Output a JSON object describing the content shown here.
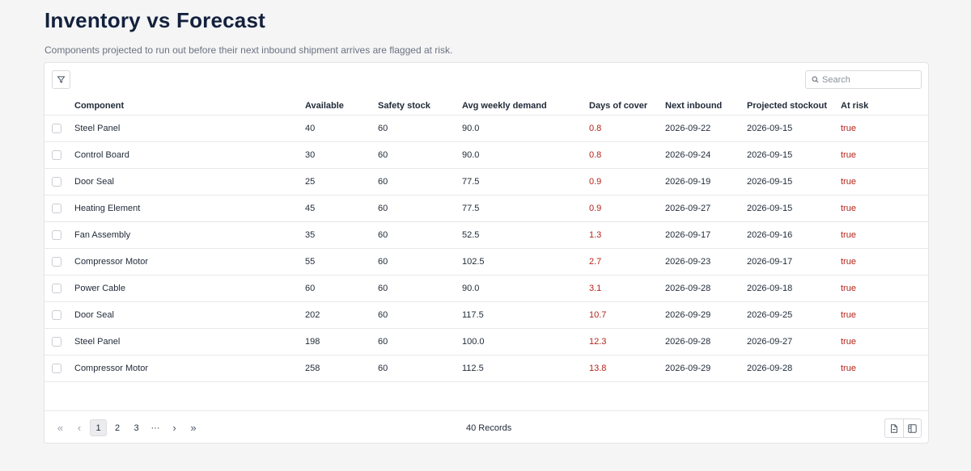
{
  "header": {
    "title": "Inventory vs Forecast",
    "subtitle": "Components projected to run out before their next inbound shipment arrives are flagged at risk."
  },
  "toolbar": {
    "filter_icon": "filter-icon",
    "search_icon": "search-icon",
    "search_placeholder": "Search",
    "search_value": ""
  },
  "table": {
    "columns": [
      "Component",
      "Available",
      "Safety stock",
      "Avg weekly demand",
      "Days of cover",
      "Next inbound",
      "Projected stockout",
      "At risk"
    ],
    "rows": [
      {
        "component": "Steel Panel",
        "available": "40",
        "safety_stock": "60",
        "avg_weekly_demand": "90.0",
        "days_of_cover": "0.8",
        "next_inbound": "2026-09-22",
        "projected_stockout": "2026-09-15",
        "at_risk": "true"
      },
      {
        "component": "Control Board",
        "available": "30",
        "safety_stock": "60",
        "avg_weekly_demand": "90.0",
        "days_of_cover": "0.8",
        "next_inbound": "2026-09-24",
        "projected_stockout": "2026-09-15",
        "at_risk": "true"
      },
      {
        "component": "Door Seal",
        "available": "25",
        "safety_stock": "60",
        "avg_weekly_demand": "77.5",
        "days_of_cover": "0.9",
        "next_inbound": "2026-09-19",
        "projected_stockout": "2026-09-15",
        "at_risk": "true"
      },
      {
        "component": "Heating Element",
        "available": "45",
        "safety_stock": "60",
        "avg_weekly_demand": "77.5",
        "days_of_cover": "0.9",
        "next_inbound": "2026-09-27",
        "projected_stockout": "2026-09-15",
        "at_risk": "true"
      },
      {
        "component": "Fan Assembly",
        "available": "35",
        "safety_stock": "60",
        "avg_weekly_demand": "52.5",
        "days_of_cover": "1.3",
        "next_inbound": "2026-09-17",
        "projected_stockout": "2026-09-16",
        "at_risk": "true"
      },
      {
        "component": "Compressor Motor",
        "available": "55",
        "safety_stock": "60",
        "avg_weekly_demand": "102.5",
        "days_of_cover": "2.7",
        "next_inbound": "2026-09-23",
        "projected_stockout": "2026-09-17",
        "at_risk": "true"
      },
      {
        "component": "Power Cable",
        "available": "60",
        "safety_stock": "60",
        "avg_weekly_demand": "90.0",
        "days_of_cover": "3.1",
        "next_inbound": "2026-09-28",
        "projected_stockout": "2026-09-18",
        "at_risk": "true"
      },
      {
        "component": "Door Seal",
        "available": "202",
        "safety_stock": "60",
        "avg_weekly_demand": "117.5",
        "days_of_cover": "10.7",
        "next_inbound": "2026-09-29",
        "projected_stockout": "2026-09-25",
        "at_risk": "true"
      },
      {
        "component": "Steel Panel",
        "available": "198",
        "safety_stock": "60",
        "avg_weekly_demand": "100.0",
        "days_of_cover": "12.3",
        "next_inbound": "2026-09-28",
        "projected_stockout": "2026-09-27",
        "at_risk": "true"
      },
      {
        "component": "Compressor Motor",
        "available": "258",
        "safety_stock": "60",
        "avg_weekly_demand": "112.5",
        "days_of_cover": "13.8",
        "next_inbound": "2026-09-29",
        "projected_stockout": "2026-09-28",
        "at_risk": "true"
      }
    ]
  },
  "pagination": {
    "first_icon": "chevrons-left-icon",
    "prev_icon": "chevron-left-icon",
    "pages": [
      "1",
      "2",
      "3"
    ],
    "ellipsis": "···",
    "current_page": "1",
    "next_icon": "chevron-right-icon",
    "last_icon": "chevrons-right-icon",
    "records_label": "40 Records"
  },
  "footer_actions": [
    "export-file-icon",
    "column-panel-icon"
  ],
  "colors": {
    "title": "#14213d",
    "risk_text": "#b42318",
    "background": "#f5f5f6"
  }
}
